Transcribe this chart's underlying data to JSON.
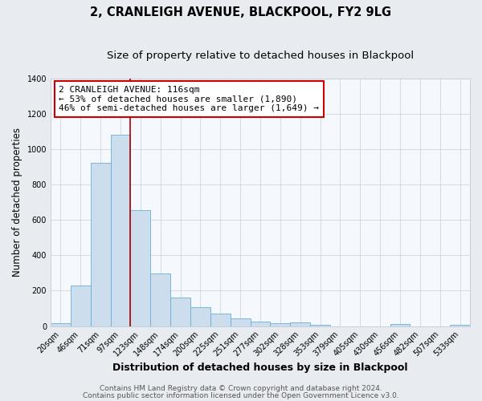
{
  "title": "2, CRANLEIGH AVENUE, BLACKPOOL, FY2 9LG",
  "subtitle": "Size of property relative to detached houses in Blackpool",
  "xlabel": "Distribution of detached houses by size in Blackpool",
  "ylabel": "Number of detached properties",
  "bar_labels": [
    "20sqm",
    "46sqm",
    "71sqm",
    "97sqm",
    "123sqm",
    "148sqm",
    "174sqm",
    "200sqm",
    "225sqm",
    "251sqm",
    "277sqm",
    "302sqm",
    "328sqm",
    "353sqm",
    "379sqm",
    "405sqm",
    "430sqm",
    "456sqm",
    "482sqm",
    "507sqm",
    "533sqm"
  ],
  "bar_values": [
    15,
    230,
    920,
    1080,
    655,
    295,
    160,
    107,
    72,
    45,
    25,
    18,
    20,
    5,
    0,
    0,
    0,
    10,
    0,
    0,
    5
  ],
  "bar_color": "#ccdded",
  "bar_edge_color": "#6aaed6",
  "vline_color": "#aa0000",
  "annotation_box_text": "2 CRANLEIGH AVENUE: 116sqm\n← 53% of detached houses are smaller (1,890)\n46% of semi-detached houses are larger (1,649) →",
  "annotation_box_facecolor": "#ffffff",
  "annotation_box_edge_color": "#cc0000",
  "ylim": [
    0,
    1400
  ],
  "yticks": [
    0,
    200,
    400,
    600,
    800,
    1000,
    1200,
    1400
  ],
  "bg_color": "#e8ecf0",
  "plot_bg_color": "#f5f8fc",
  "grid_color": "#c8d0da",
  "footer_line1": "Contains HM Land Registry data © Crown copyright and database right 2024.",
  "footer_line2": "Contains public sector information licensed under the Open Government Licence v3.0.",
  "title_fontsize": 10.5,
  "subtitle_fontsize": 9.5,
  "ylabel_fontsize": 8.5,
  "xlabel_fontsize": 9,
  "tick_fontsize": 7,
  "annotation_fontsize": 8,
  "footer_fontsize": 6.5,
  "vline_bar_index": 4
}
